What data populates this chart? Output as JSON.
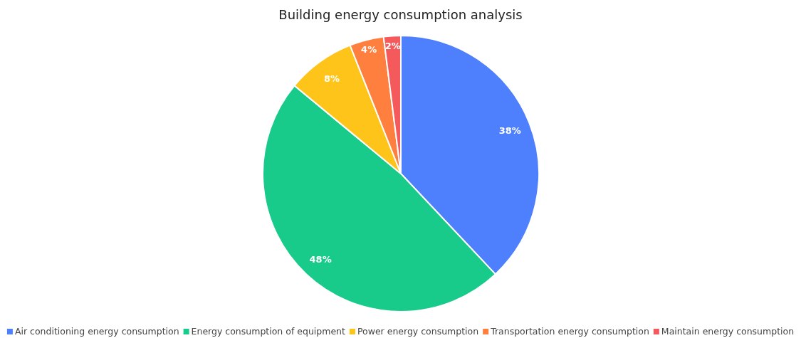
{
  "chart_data": {
    "type": "pie",
    "title": "Building energy consumption analysis",
    "categories": [
      "Air conditioning energy consumption",
      "Energy consumption of equipment",
      "Power energy consumption",
      "Transportation energy consumption",
      "Maintain energy consumption"
    ],
    "values": [
      38,
      48,
      8,
      4,
      2
    ],
    "value_labels": [
      "38%",
      "48%",
      "8%",
      "4%",
      "2%"
    ],
    "colors": [
      "#4e80fe",
      "#18cb8a",
      "#fec419",
      "#fe7f3e",
      "#f4595c"
    ],
    "legend": "bottom"
  }
}
